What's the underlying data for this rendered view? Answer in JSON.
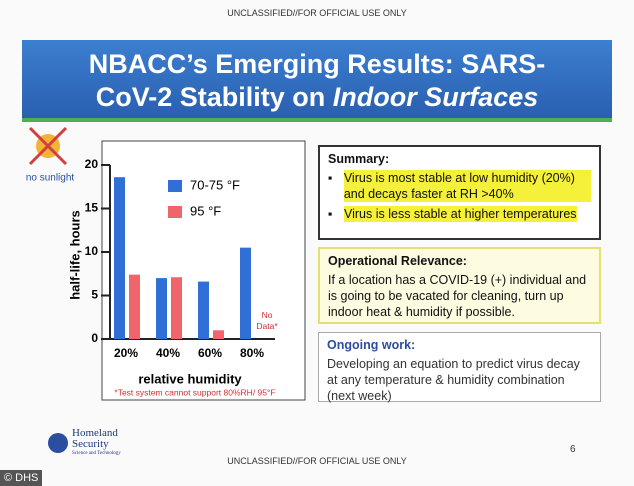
{
  "banner_top": "UNCLASSIFIED//FOR OFFICIAL USE ONLY",
  "header": {
    "title_line1": "NBACC’s Emerging Results: SARS-",
    "title_line2": "CoV-2 Stability on ",
    "title_line2_italic": "Indoor Surfaces"
  },
  "sunlight_note": "no sunlight",
  "chart_data": {
    "type": "bar",
    "categories": [
      "20%",
      "40%",
      "60%",
      "80%"
    ],
    "series": [
      {
        "name": "70-75 °F",
        "color": "#2f6fd6",
        "values": [
          18.6,
          7,
          6.6,
          10.5
        ]
      },
      {
        "name": "95 °F",
        "color": "#f0646c",
        "values": [
          7.4,
          7.1,
          1,
          null
        ]
      }
    ],
    "ylim": [
      0,
      20
    ],
    "yticks": [
      0,
      5,
      10,
      15,
      20
    ],
    "x_label": "relative humidity",
    "y_label": "half-life, hours",
    "annotation": "No Data*",
    "footnote": "*Test system cannot support 80%RH/ 95°F"
  },
  "summary": {
    "heading": "Summary:",
    "bullets": [
      "Virus is most stable at low humidity (20%) and decays faster at RH >40%",
      "Virus is less stable at higher temperatures"
    ]
  },
  "operational": {
    "heading": "Operational Relevance:",
    "text": "If a location has a COVID-19 (+) individual and is going to be vacated for cleaning, turn up indoor heat & humidity if possible."
  },
  "ongoing": {
    "heading": "Ongoing work:",
    "text": "Developing an equation to predict virus decay at any temperature & humidity combination (next week)"
  },
  "logo": {
    "line1": "Homeland",
    "line2": "Security",
    "line3": "Science and Technology"
  },
  "page_number": "6",
  "banner_bottom": "UNCLASSIFIED//FOR OFFICIAL USE ONLY",
  "credit": "© DHS"
}
